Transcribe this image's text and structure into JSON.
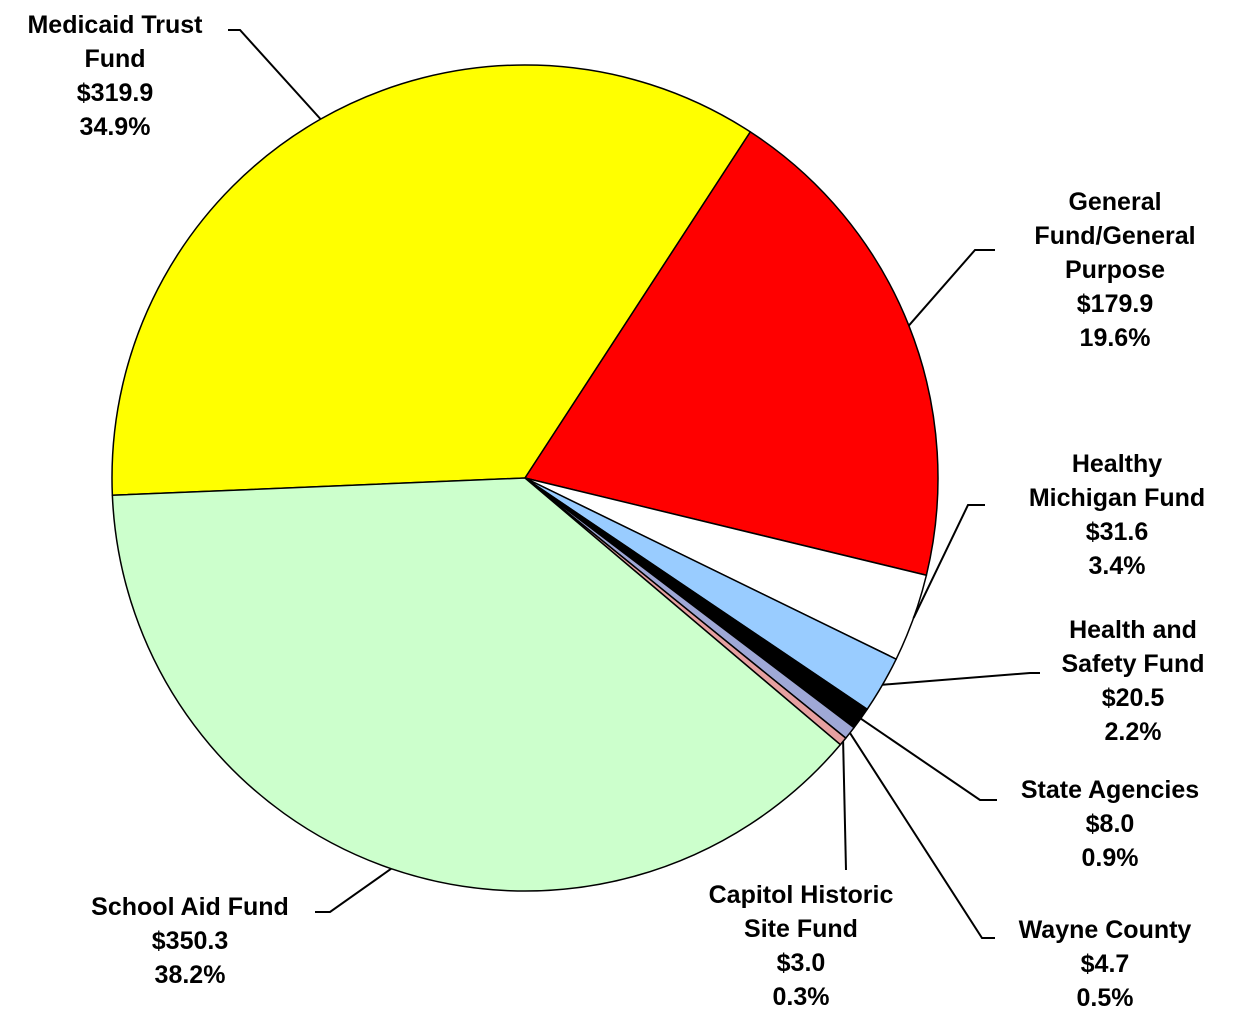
{
  "chart_data": {
    "type": "pie",
    "categories": [
      "Medicaid Trust Fund",
      "General Fund/General Purpose",
      "Healthy Michigan Fund",
      "Health and Safety Fund",
      "State Agencies",
      "Wayne County",
      "Capitol Historic Site Fund",
      "School Aid Fund"
    ],
    "values": [
      319.9,
      179.9,
      31.6,
      20.5,
      8.0,
      4.7,
      3.0,
      350.3
    ],
    "value_labels": [
      "$319.9",
      "$179.9",
      "$31.6",
      "$20.5",
      "$8.0",
      "$4.7",
      "$3.0",
      "$350.3"
    ],
    "percents": [
      34.9,
      19.6,
      3.4,
      2.2,
      0.9,
      0.5,
      0.3,
      38.2
    ],
    "percent_labels": [
      "34.9%",
      "19.6%",
      "3.4%",
      "2.2%",
      "0.9%",
      "0.5%",
      "0.3%",
      "38.2%"
    ],
    "colors": [
      "#ffff00",
      "#ff0000",
      "#ffffff",
      "#99ccff",
      "#000000",
      "#9fa8d6",
      "#e6a0a0",
      "#ccffcc"
    ]
  }
}
